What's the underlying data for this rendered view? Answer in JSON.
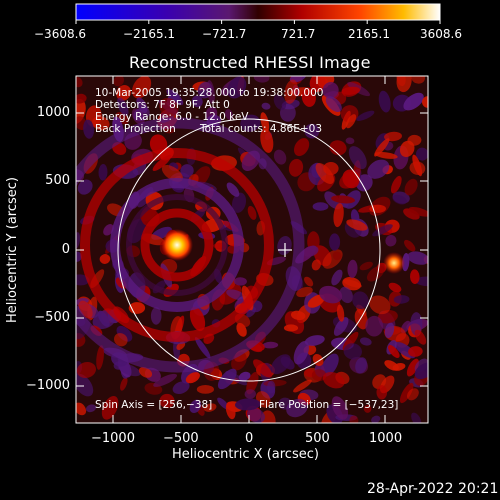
{
  "colorbar": {
    "ticks": [
      "−3608.6",
      "−2165.1",
      "−721.7",
      "721.7",
      "2165.1",
      "3608.6"
    ]
  },
  "title": "Reconstructed RHESSI Image",
  "info": {
    "time_range": "10-Mar-2005 19:35:28.000 to 19:38:00.000",
    "detectors": "Detectors: 7F 8F 9F, Att 0",
    "energy_range": "Energy Range: 6.0 - 12.0 keV",
    "method": "Back Projection",
    "total_counts": "Total counts: 4.86E+03"
  },
  "annotations": {
    "spin_axis": "Spin Axis = [256,−38]",
    "flare_position": "Flare Position = [−537,23]"
  },
  "axes": {
    "x_label": "Heliocentric X (arcsec)",
    "y_label": "Heliocentric Y (arcsec)",
    "x_ticks": [
      "−1000",
      "−500",
      "0",
      "500",
      "1000"
    ],
    "y_ticks": [
      "1000",
      "500",
      "0",
      "−500",
      "−1000"
    ]
  },
  "footer_date": "28-Apr-2022 20:21",
  "colors": {
    "solar_limb": "#ffffff",
    "background": "#000000",
    "colormap": [
      "#0000ff",
      "#3300aa",
      "#4a1880",
      "#5a0000",
      "#cc0000",
      "#ff5500",
      "#ffcc00",
      "#ffffff"
    ]
  }
}
